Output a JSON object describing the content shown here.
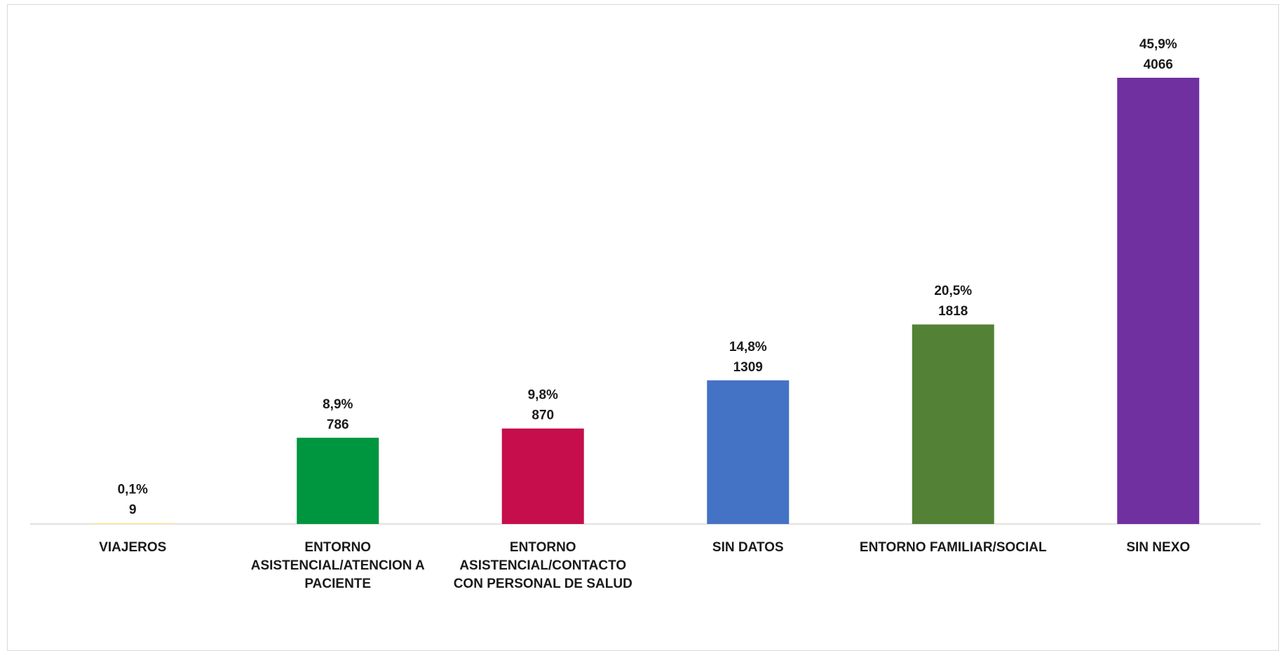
{
  "chart_data": {
    "type": "bar",
    "categories": [
      [
        "VIAJEROS"
      ],
      [
        "ENTORNO",
        "ASISTENCIAL/ATENCION A",
        "PACIENTE"
      ],
      [
        "ENTORNO",
        "ASISTENCIAL/CONTACTO",
        "CON PERSONAL DE SALUD"
      ],
      [
        "SIN DATOS"
      ],
      [
        "ENTORNO FAMILIAR/SOCIAL"
      ],
      [
        "SIN NEXO"
      ]
    ],
    "values": [
      9,
      786,
      870,
      1309,
      1818,
      4066
    ],
    "percent_labels": [
      "0,1%",
      "8,9%",
      "9,8%",
      "14,8%",
      "20,5%",
      "45,9%"
    ],
    "value_labels": [
      "9",
      "786",
      "870",
      "1309",
      "1818",
      "4066"
    ],
    "colors": [
      "#ffe699",
      "#00963f",
      "#c50e4b",
      "#4472c4",
      "#538135",
      "#7030a0"
    ],
    "ylim": [
      0,
      4066
    ],
    "grid": false,
    "legend": "none",
    "title": "",
    "xlabel": "",
    "ylabel": ""
  }
}
